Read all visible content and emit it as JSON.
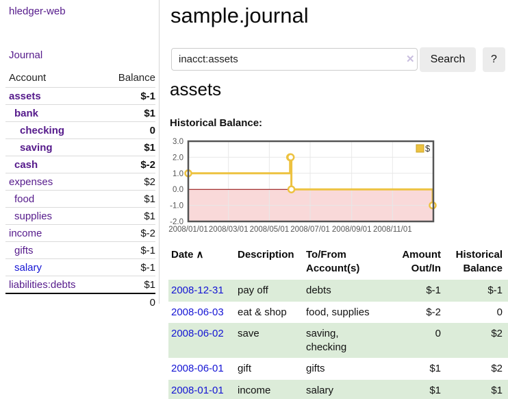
{
  "app": {
    "brand": "hledger-web",
    "nav_journal": "Journal"
  },
  "sidebar": {
    "accounts_header": {
      "account": "Account",
      "balance": "Balance"
    },
    "accounts": [
      {
        "name": "assets",
        "indent": 1,
        "bold": true,
        "balance": "$-1",
        "neg": "strong"
      },
      {
        "name": "bank",
        "indent": 2,
        "bold": true,
        "balance": "$1"
      },
      {
        "name": "checking",
        "indent": 3,
        "bold": true,
        "balance": "0"
      },
      {
        "name": "saving",
        "indent": 3,
        "bold": true,
        "balance": "$1"
      },
      {
        "name": "cash",
        "indent": 2,
        "bold": true,
        "balance": "$-2",
        "neg": "strong"
      },
      {
        "name": "expenses",
        "indent": 1,
        "bold": false,
        "balance": "$2"
      },
      {
        "name": "food",
        "indent": 2,
        "bold": false,
        "balance": "$1"
      },
      {
        "name": "supplies",
        "indent": 2,
        "bold": false,
        "balance": "$1"
      },
      {
        "name": "income",
        "indent": 1,
        "bold": false,
        "balance": "$-2",
        "neg": "soft"
      },
      {
        "name": "gifts",
        "indent": 2,
        "bold": false,
        "balance": "$-1",
        "neg": "soft"
      },
      {
        "name": "salary",
        "indent": 2,
        "bold": false,
        "balance": "$-1",
        "neg": "soft",
        "link_color": "blue"
      },
      {
        "name": "liabilities:debts",
        "indent": 1,
        "bold": false,
        "balance": "$1"
      }
    ],
    "total": "0"
  },
  "header": {
    "title": "sample.journal"
  },
  "search": {
    "value": "inacct:assets",
    "clear_icon": "✕",
    "button_label": "Search",
    "help_label": "?"
  },
  "account_page": {
    "heading": "assets",
    "chart_label": "Historical Balance:"
  },
  "chart_data": {
    "type": "line",
    "title": "Historical Balance:",
    "series": [
      {
        "name": "$",
        "color": "#edc240",
        "step": true,
        "points": [
          [
            "2008-01-01",
            1
          ],
          [
            "2008-06-01",
            2
          ],
          [
            "2008-06-02",
            2
          ],
          [
            "2008-06-03",
            0
          ],
          [
            "2008-12-31",
            -1
          ]
        ]
      }
    ],
    "xlim": [
      "2008-01-01",
      "2009-01-01"
    ],
    "ylim": [
      -2,
      3
    ],
    "y_ticks": [
      3.0,
      2.0,
      1.0,
      0.0,
      -1.0,
      -2.0
    ],
    "x_tick_dates": [
      "2008-01-01",
      "2008-03-01",
      "2008-05-01",
      "2008-07-01",
      "2008-09-01",
      "2008-11-01"
    ],
    "x_ticks": [
      "2008/01/01",
      "2008/03/01",
      "2008/05/01",
      "2008/07/01",
      "2008/09/01",
      "2008/11/01"
    ],
    "grid": true,
    "negative_region_fill": "#f9d9d9",
    "zero_line_color": "#8b0000",
    "border_color": "#545454",
    "legend": {
      "label": "$",
      "position": "top-right"
    }
  },
  "register": {
    "columns": [
      "Date",
      "Description",
      "To/From Account(s)",
      "Amount Out/In",
      "Historical Balance"
    ],
    "sort_icon": "∧",
    "rows": [
      {
        "date": "2008-12-31",
        "description": "pay off",
        "accounts": "debts",
        "amount": "$-1",
        "amount_neg": true,
        "balance": "$-1",
        "balance_neg": true,
        "striped": true
      },
      {
        "date": "2008-06-03",
        "description": "eat & shop",
        "accounts": "food, supplies",
        "amount": "$-2",
        "amount_neg": true,
        "balance": "0",
        "balance_neg": false,
        "striped": false
      },
      {
        "date": "2008-06-02",
        "description": "save",
        "accounts": "saving, checking",
        "amount": "0",
        "amount_neg": false,
        "balance": "$2",
        "balance_neg": false,
        "striped": true
      },
      {
        "date": "2008-06-01",
        "description": "gift",
        "accounts": "gifts",
        "amount": "$1",
        "amount_neg": false,
        "balance": "$2",
        "balance_neg": false,
        "striped": false
      },
      {
        "date": "2008-01-01",
        "description": "income",
        "accounts": "salary",
        "amount": "$1",
        "amount_neg": false,
        "balance": "$1",
        "balance_neg": false,
        "striped": true
      }
    ]
  }
}
